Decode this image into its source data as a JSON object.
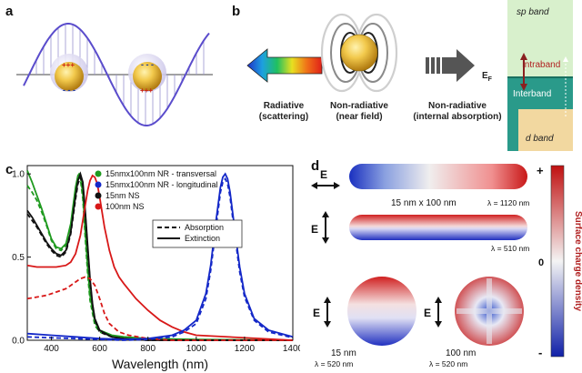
{
  "panels": {
    "a": {
      "label": "a"
    },
    "b": {
      "label": "b",
      "radiative_caption": [
        "Radiative",
        "(scattering)"
      ],
      "nonrad_near_caption": [
        "Non-radiative",
        "(near field)"
      ],
      "nonrad_internal_caption": [
        "Non-radiative",
        "(internal absorption)"
      ],
      "band": {
        "sp": "sp band",
        "intraband": "Intraband",
        "fermi": "E",
        "fermi_sub": "F",
        "interband": "Interband",
        "d": "d band"
      }
    },
    "c": {
      "label": "c"
    },
    "d": {
      "label": "d",
      "field_label": "E",
      "rod_size_label": "15 nm x 100 nm",
      "lambda_rod_long": "λ = 1120 nm",
      "lambda_rod_trans": "λ = 510 nm",
      "sphere15_label": "15 nm",
      "sphere15_lambda": "λ = 520 nm",
      "sphere100_label": "100 nm",
      "sphere100_lambda": "λ = 520 nm",
      "colorbar_plus": "+",
      "colorbar_zero": "0",
      "colorbar_minus": "-",
      "colorbar_title": "Surface charge density"
    }
  },
  "chart_data": {
    "type": "line",
    "title": "",
    "xlabel": "Wavelength (nm)",
    "ylabel": "",
    "xlim": [
      300,
      1400
    ],
    "ylim": [
      0,
      1.05
    ],
    "xticks": [
      400,
      600,
      800,
      1000,
      1200,
      1400
    ],
    "yticks": [
      0.0,
      0.5,
      1.0
    ],
    "xtick_labels": [
      "400",
      "600",
      "800",
      "1000",
      "1200",
      "1400"
    ],
    "ytick_labels": [
      "0.0",
      "0.5",
      "1.0"
    ],
    "legend_series": [
      {
        "name": "15nmx100nm NR - transversal",
        "color": "#1f9a1f"
      },
      {
        "name": "15nmx100nm NR - longitudinal",
        "color": "#1428c8"
      },
      {
        "name": "15nm NS",
        "color": "#111111"
      },
      {
        "name": "100nm NS",
        "color": "#d81818"
      }
    ],
    "legend_style": [
      {
        "name": "Absorption",
        "dash": true
      },
      {
        "name": "Extinction",
        "dash": false
      }
    ],
    "legend_placement": "top-right",
    "series": [
      {
        "id": "nr-trans-ext",
        "color": "#1f9a1f",
        "dash": false,
        "x": [
          300,
          320,
          340,
          360,
          380,
          400,
          420,
          440,
          460,
          480,
          500,
          510,
          515,
          520,
          530,
          540,
          550,
          560,
          580,
          600,
          650,
          700,
          800,
          1000,
          1400
        ],
        "y": [
          1.02,
          0.95,
          0.87,
          0.79,
          0.7,
          0.61,
          0.56,
          0.55,
          0.58,
          0.7,
          0.92,
          0.99,
          1.0,
          0.99,
          0.88,
          0.66,
          0.44,
          0.27,
          0.11,
          0.06,
          0.03,
          0.02,
          0.01,
          0.005,
          0.0
        ]
      },
      {
        "id": "nr-trans-abs",
        "color": "#1f9a1f",
        "dash": true,
        "x": [
          300,
          320,
          340,
          360,
          380,
          400,
          420,
          440,
          460,
          480,
          500,
          510,
          515,
          520,
          530,
          540,
          550,
          560,
          580,
          600,
          650,
          700,
          800,
          1000,
          1400
        ],
        "y": [
          0.93,
          0.89,
          0.84,
          0.77,
          0.69,
          0.6,
          0.55,
          0.54,
          0.57,
          0.69,
          0.91,
          0.98,
          0.99,
          0.97,
          0.85,
          0.62,
          0.4,
          0.24,
          0.09,
          0.05,
          0.02,
          0.01,
          0.005,
          0.0,
          0.0
        ]
      },
      {
        "id": "ns15-ext",
        "color": "#111111",
        "dash": false,
        "x": [
          300,
          320,
          340,
          360,
          380,
          400,
          420,
          440,
          460,
          480,
          500,
          510,
          520,
          530,
          540,
          550,
          560,
          570,
          580,
          600,
          650,
          700,
          800,
          1400
        ],
        "y": [
          0.78,
          0.74,
          0.69,
          0.64,
          0.59,
          0.55,
          0.52,
          0.51,
          0.54,
          0.65,
          0.87,
          0.96,
          1.0,
          0.95,
          0.78,
          0.57,
          0.37,
          0.22,
          0.13,
          0.06,
          0.02,
          0.01,
          0.0,
          0.0
        ]
      },
      {
        "id": "ns15-abs",
        "color": "#111111",
        "dash": true,
        "x": [
          300,
          320,
          340,
          360,
          380,
          400,
          420,
          440,
          460,
          480,
          500,
          510,
          520,
          530,
          540,
          550,
          560,
          570,
          580,
          600,
          650,
          700,
          800,
          1400
        ],
        "y": [
          0.76,
          0.72,
          0.68,
          0.63,
          0.58,
          0.54,
          0.51,
          0.5,
          0.53,
          0.64,
          0.85,
          0.94,
          0.98,
          0.93,
          0.76,
          0.55,
          0.35,
          0.21,
          0.12,
          0.05,
          0.02,
          0.01,
          0.0,
          0.0
        ]
      },
      {
        "id": "ns100-ext",
        "color": "#d81818",
        "dash": false,
        "x": [
          300,
          340,
          380,
          420,
          460,
          480,
          500,
          520,
          540,
          550,
          560,
          570,
          580,
          590,
          600,
          620,
          640,
          660,
          680,
          700,
          750,
          800,
          850,
          900,
          950,
          1000,
          1400
        ],
        "y": [
          0.45,
          0.44,
          0.44,
          0.44,
          0.45,
          0.47,
          0.52,
          0.63,
          0.81,
          0.9,
          0.96,
          0.99,
          0.98,
          0.94,
          0.86,
          0.68,
          0.54,
          0.44,
          0.38,
          0.34,
          0.25,
          0.18,
          0.12,
          0.08,
          0.05,
          0.03,
          0.0
        ]
      },
      {
        "id": "ns100-abs",
        "color": "#d81818",
        "dash": true,
        "x": [
          300,
          340,
          380,
          420,
          460,
          480,
          500,
          520,
          540,
          560,
          580,
          600,
          620,
          640,
          680,
          720,
          800,
          900,
          1400
        ],
        "y": [
          0.25,
          0.26,
          0.27,
          0.29,
          0.31,
          0.33,
          0.35,
          0.37,
          0.38,
          0.37,
          0.33,
          0.25,
          0.16,
          0.1,
          0.05,
          0.03,
          0.01,
          0.0,
          0.0
        ]
      },
      {
        "id": "nr-long-ext",
        "color": "#1428c8",
        "dash": false,
        "x": [
          300,
          400,
          500,
          600,
          700,
          800,
          900,
          950,
          1000,
          1040,
          1060,
          1080,
          1100,
          1110,
          1120,
          1130,
          1140,
          1160,
          1180,
          1200,
          1240,
          1300,
          1400
        ],
        "y": [
          0.04,
          0.03,
          0.02,
          0.01,
          0.005,
          0.01,
          0.03,
          0.06,
          0.12,
          0.28,
          0.45,
          0.7,
          0.92,
          0.98,
          1.0,
          0.97,
          0.89,
          0.66,
          0.44,
          0.28,
          0.13,
          0.06,
          0.02
        ]
      },
      {
        "id": "nr-long-abs",
        "color": "#1428c8",
        "dash": true,
        "x": [
          300,
          400,
          500,
          600,
          700,
          800,
          900,
          950,
          1000,
          1040,
          1060,
          1080,
          1100,
          1110,
          1120,
          1130,
          1140,
          1160,
          1180,
          1200,
          1240,
          1300,
          1400
        ],
        "y": [
          0.02,
          0.015,
          0.01,
          0.005,
          0.0,
          0.005,
          0.02,
          0.05,
          0.1,
          0.25,
          0.42,
          0.66,
          0.89,
          0.95,
          0.97,
          0.94,
          0.86,
          0.63,
          0.41,
          0.26,
          0.12,
          0.05,
          0.015
        ]
      }
    ]
  }
}
